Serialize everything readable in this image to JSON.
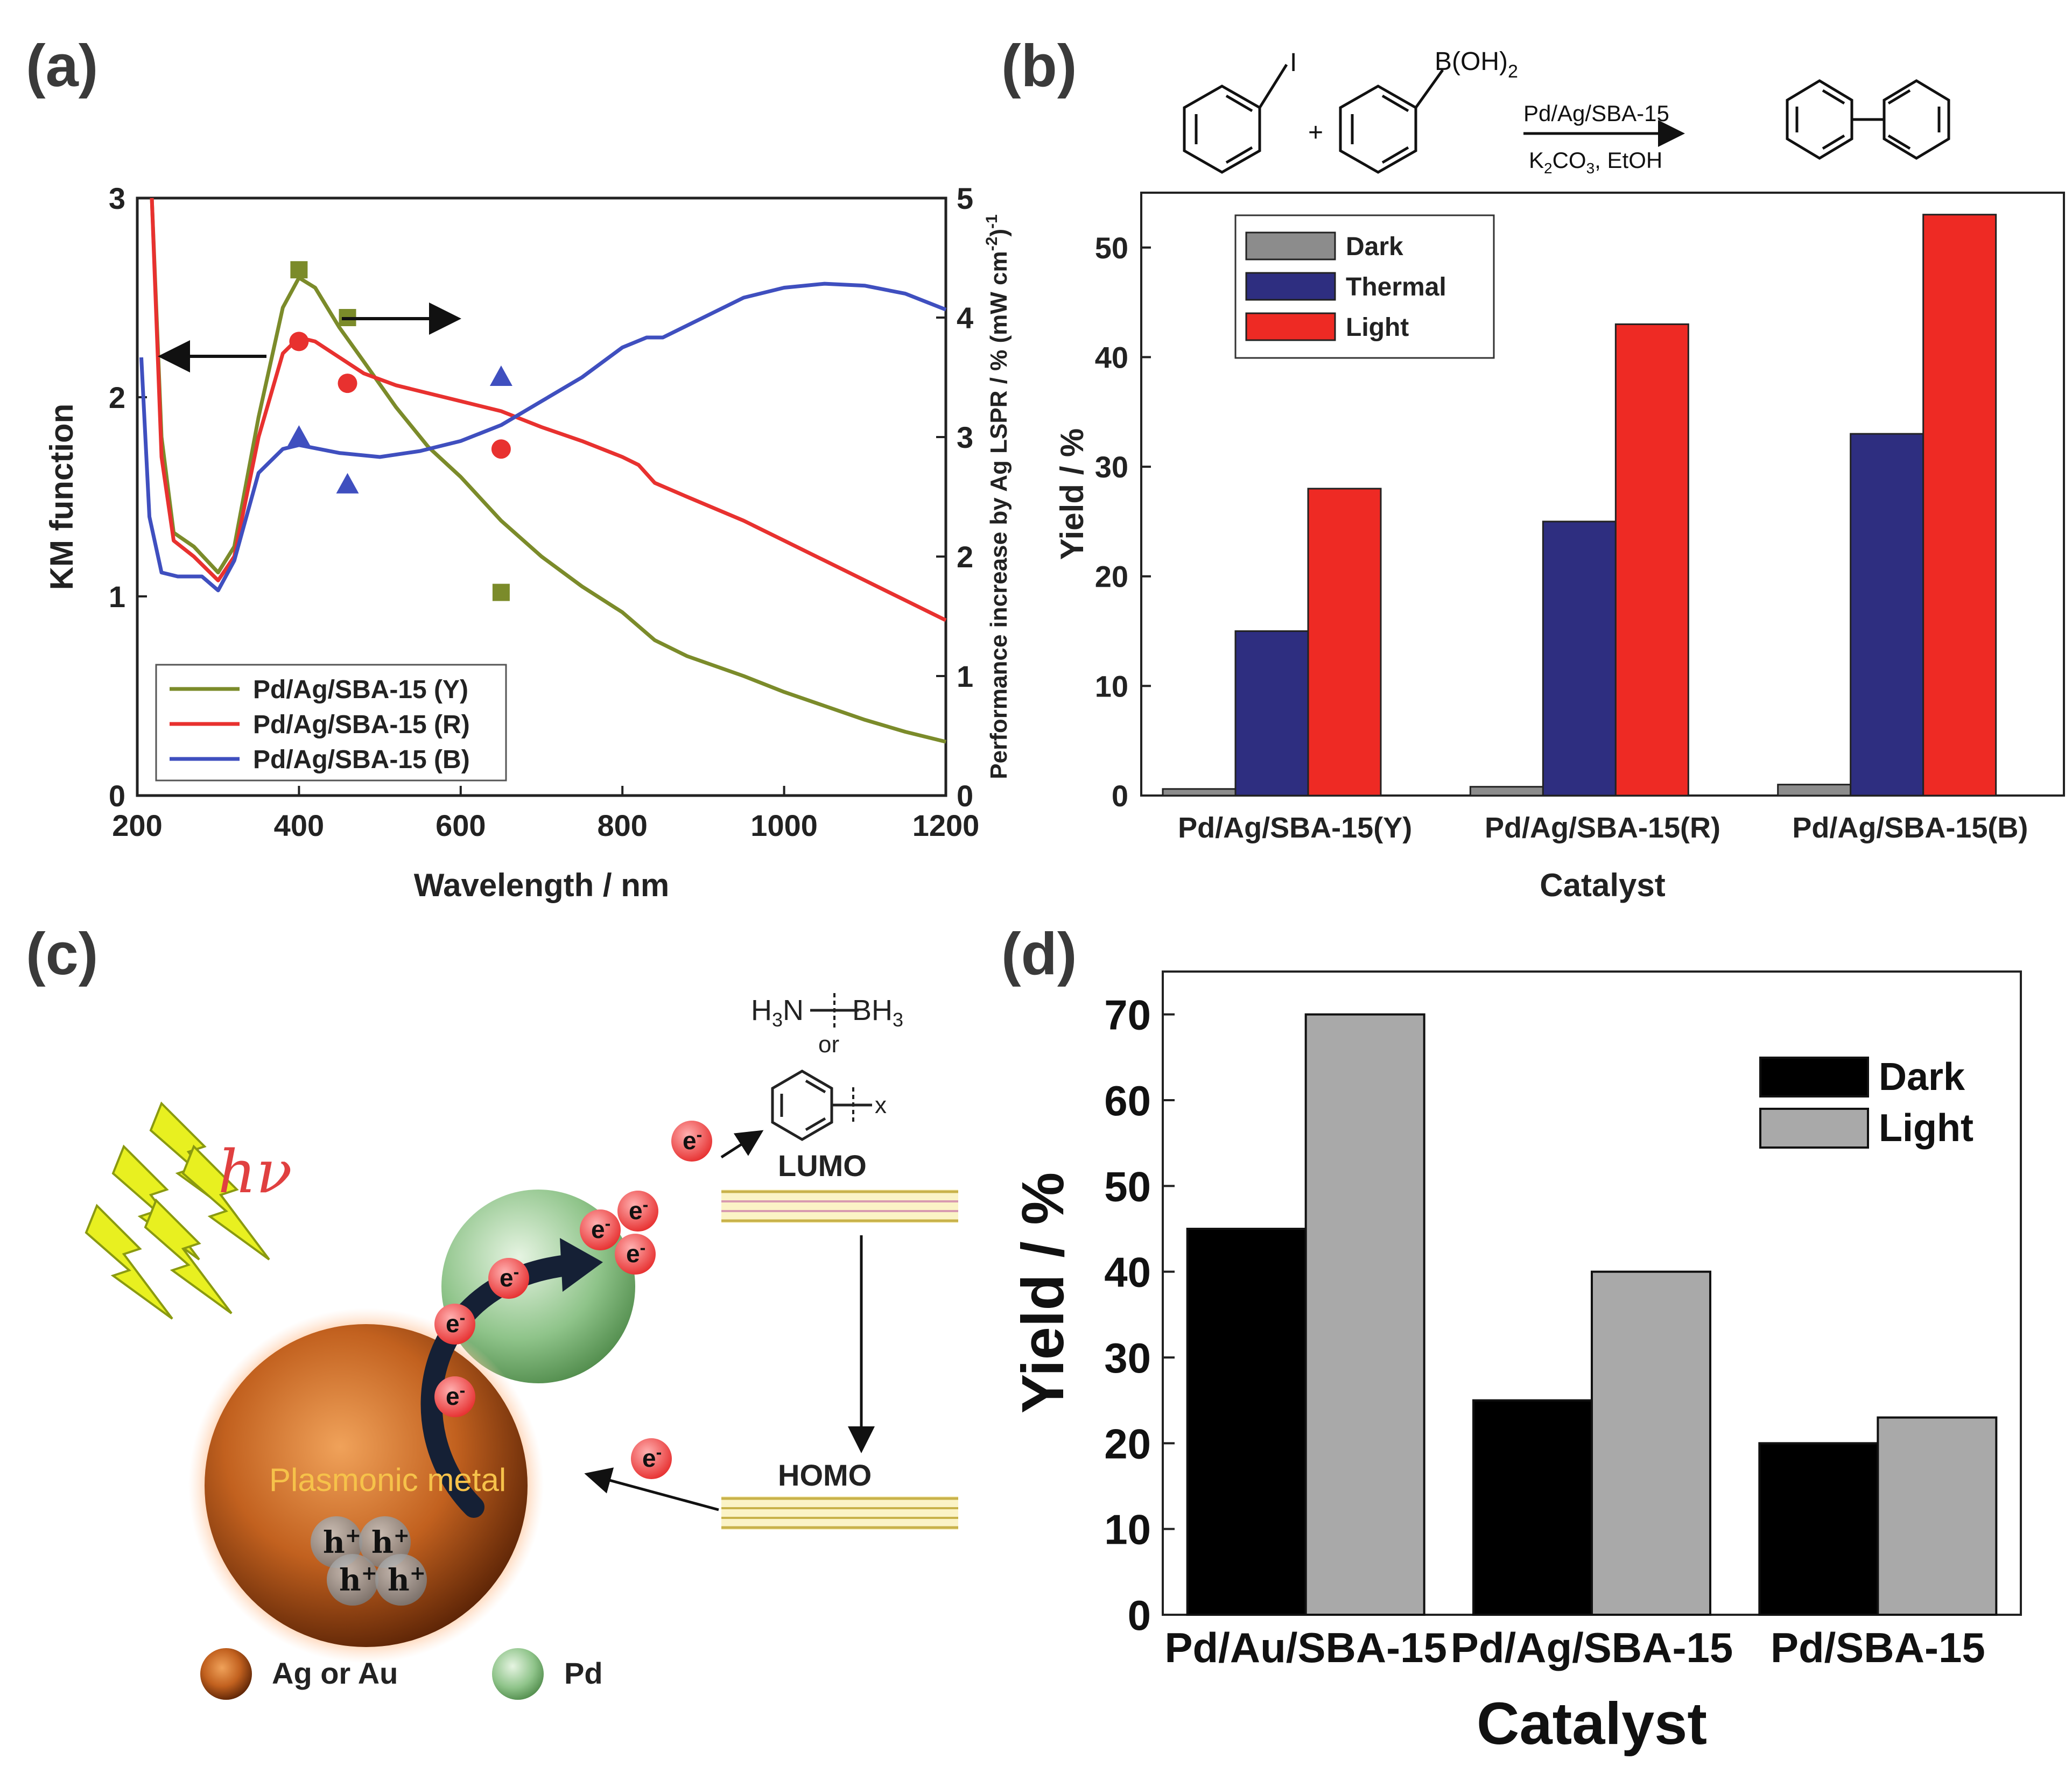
{
  "panels": {
    "a": "(a)",
    "b": "(b)",
    "c": "(c)",
    "d": "(d)"
  },
  "chart_data": [
    {
      "id": "a",
      "type": "line",
      "xlabel": "Wavelength / nm",
      "ylabel": "KM function",
      "y2label": "Performance increase by Ag LSPR / % (mW cm",
      "y2label_sup": "-2",
      "y2label_end": ")",
      "y2label_sup2": "-1",
      "xlim": [
        200,
        1200
      ],
      "ylim": [
        0,
        3
      ],
      "y2lim": [
        0,
        5
      ],
      "xticks": [
        "200",
        "400",
        "600",
        "800",
        "1000",
        "1200"
      ],
      "yticks": [
        "0",
        "1",
        "2",
        "3"
      ],
      "y2ticks": [
        "0",
        "1",
        "2",
        "3",
        "4",
        "5"
      ],
      "series": [
        {
          "name": "Pd/Ag/SBA-15 (Y)",
          "color": "#7b8b2a",
          "x": [
            218,
            230,
            245,
            270,
            300,
            320,
            350,
            380,
            400,
            420,
            450,
            480,
            520,
            560,
            600,
            650,
            700,
            750,
            800,
            820,
            840,
            880,
            950,
            1000,
            1050,
            1100,
            1150,
            1200
          ],
          "y": [
            3.0,
            1.8,
            1.32,
            1.25,
            1.12,
            1.25,
            1.9,
            2.45,
            2.6,
            2.55,
            2.35,
            2.18,
            1.95,
            1.75,
            1.6,
            1.38,
            1.2,
            1.05,
            0.92,
            0.85,
            0.78,
            0.7,
            0.6,
            0.52,
            0.45,
            0.38,
            0.32,
            0.27
          ]
        },
        {
          "name": "Pd/Ag/SBA-15 (R)",
          "color": "#e8312f",
          "x": [
            218,
            230,
            245,
            270,
            300,
            320,
            350,
            380,
            400,
            420,
            450,
            480,
            520,
            560,
            600,
            650,
            700,
            750,
            800,
            820,
            840,
            880,
            950,
            1000,
            1050,
            1100,
            1150,
            1200
          ],
          "y": [
            3.0,
            1.7,
            1.28,
            1.2,
            1.08,
            1.2,
            1.8,
            2.22,
            2.3,
            2.28,
            2.2,
            2.12,
            2.06,
            2.02,
            1.98,
            1.93,
            1.85,
            1.78,
            1.7,
            1.66,
            1.57,
            1.5,
            1.38,
            1.28,
            1.18,
            1.08,
            0.98,
            0.88
          ]
        },
        {
          "name": "Pd/Ag/SBA-15 (B)",
          "color": "#3f4fbf",
          "x": [
            205,
            215,
            230,
            250,
            280,
            300,
            320,
            350,
            380,
            400,
            450,
            500,
            550,
            600,
            650,
            700,
            750,
            800,
            830,
            850,
            900,
            950,
            1000,
            1050,
            1100,
            1150,
            1200
          ],
          "y": [
            2.2,
            1.4,
            1.12,
            1.1,
            1.1,
            1.03,
            1.18,
            1.62,
            1.74,
            1.76,
            1.72,
            1.7,
            1.73,
            1.78,
            1.86,
            1.98,
            2.1,
            2.25,
            2.3,
            2.3,
            2.4,
            2.5,
            2.55,
            2.57,
            2.56,
            2.52,
            2.44
          ]
        }
      ],
      "markers": [
        {
          "series": "Pd/Ag/SBA-15 (Y)",
          "shape": "square",
          "color": "#7b8b2a",
          "x": [
            400,
            460,
            650
          ],
          "y2": [
            4.4,
            4.0,
            1.7
          ]
        },
        {
          "series": "Pd/Ag/SBA-15 (R)",
          "shape": "circle",
          "color": "#e8312f",
          "x": [
            400,
            460,
            650
          ],
          "y2": [
            3.8,
            3.45,
            2.9
          ]
        },
        {
          "series": "Pd/Ag/SBA-15 (B)",
          "shape": "triangle",
          "color": "#3f4fbf",
          "x": [
            400,
            460,
            650
          ],
          "y2": [
            3.0,
            2.6,
            3.5
          ]
        }
      ],
      "legend": [
        "Pd/Ag/SBA-15 (Y)",
        "Pd/Ag/SBA-15 (R)",
        "Pd/Ag/SBA-15 (B)"
      ]
    },
    {
      "id": "b",
      "type": "bar",
      "xlabel": "Catalyst",
      "ylabel": "Yield / %",
      "ylim": [
        0,
        55
      ],
      "yticks": [
        "0",
        "10",
        "20",
        "30",
        "40",
        "50"
      ],
      "categories": [
        "Pd/Ag/SBA-15(Y)",
        "Pd/Ag/SBA-15(R)",
        "Pd/Ag/SBA-15(B)"
      ],
      "series": [
        {
          "name": "Dark",
          "color": "#8c8c8c",
          "values": [
            0.6,
            0.8,
            1.0
          ]
        },
        {
          "name": "Thermal",
          "color": "#2e2e80",
          "values": [
            15,
            25,
            33
          ]
        },
        {
          "name": "Light",
          "color": "#ee2a24",
          "values": [
            28,
            43,
            53
          ]
        }
      ]
    },
    {
      "id": "d",
      "type": "bar",
      "xlabel": "Catalyst",
      "ylabel": "Yield / %",
      "ylim": [
        0,
        75
      ],
      "yticks": [
        "0",
        "10",
        "20",
        "30",
        "40",
        "50",
        "60",
        "70"
      ],
      "categories": [
        "Pd/Au/SBA-15",
        "Pd/Ag/SBA-15",
        "Pd/SBA-15"
      ],
      "series": [
        {
          "name": "Dark",
          "color": "#000000",
          "values": [
            45,
            25,
            20
          ]
        },
        {
          "name": "Light",
          "color": "#a9a9a9",
          "values": [
            70,
            40,
            23
          ]
        }
      ]
    }
  ],
  "reaction": {
    "iodo": "I",
    "boronic": "B(OH)",
    "boronic_sub": "2",
    "plus": "+",
    "catalyst": "Pd/Ag/SBA-15",
    "cond_a": "K",
    "cond_sub1": "2",
    "cond_b": "CO",
    "cond_sub2": "3",
    "cond_c": ", EtOH"
  },
  "scheme": {
    "hv": "hν",
    "electron": "e",
    "electron_sup": "-",
    "plasmonic": "Plasmonic metal",
    "hole": "h",
    "hole_sup": "+",
    "lumo": "LUMO",
    "homo": "HOMO",
    "h3n": "H",
    "h3n_sub": "3",
    "h3n_n": "N",
    "bh3": "BH",
    "bh3_sub": "3",
    "or": "or",
    "x": "x",
    "ag_or_au": "Ag or Au",
    "pd": "Pd"
  }
}
